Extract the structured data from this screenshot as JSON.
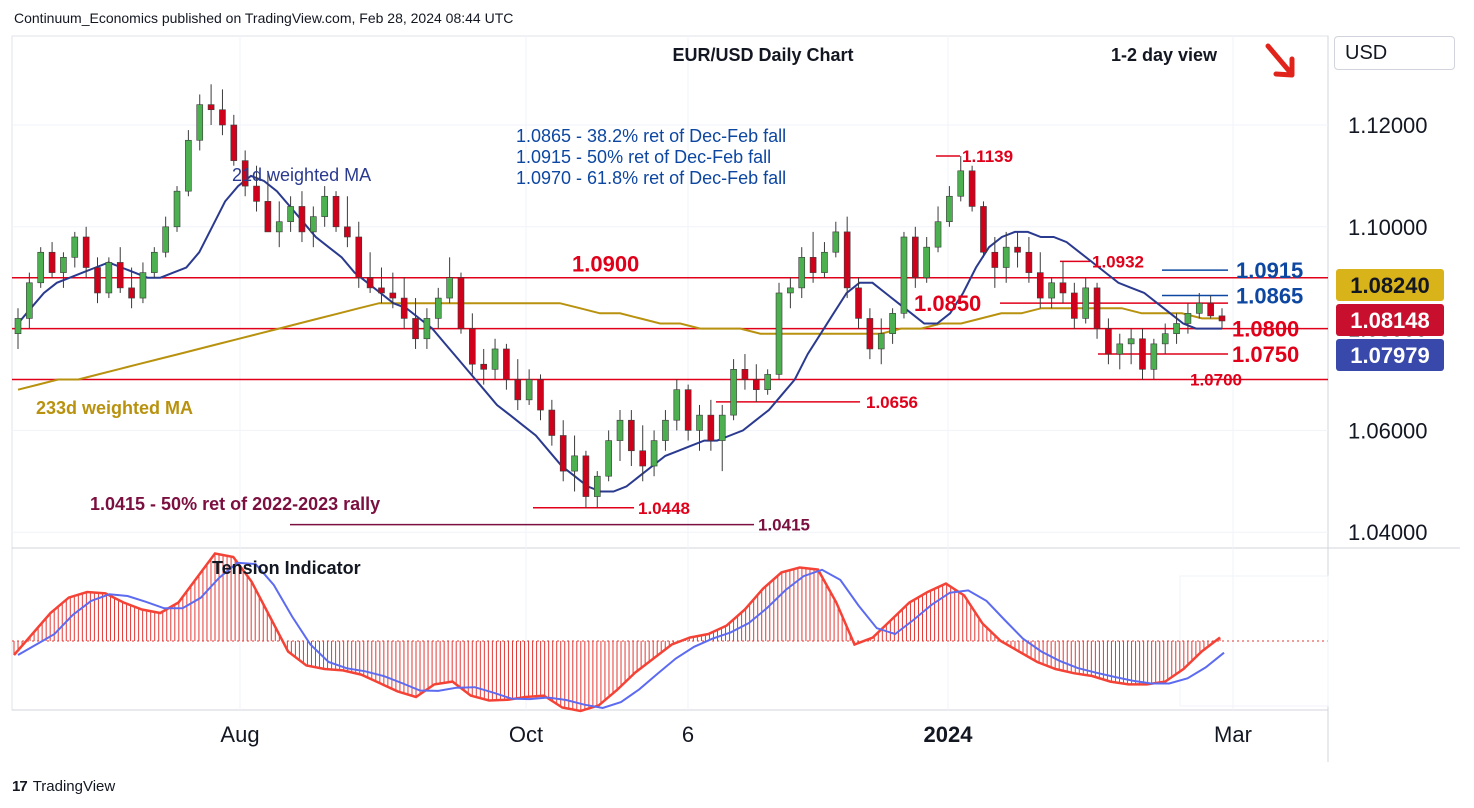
{
  "header": {
    "published": "Continuum_Economics published on TradingView.com, Feb 28, 2024 08:44 UTC",
    "currency": "USD",
    "brand": "TradingView"
  },
  "colors": {
    "up": "#4caf50",
    "down": "#d0021b",
    "wick": "#3b3b3b",
    "wma21": "#2a3a8f",
    "wma233": "#b8920f",
    "level": "#e0001a",
    "fib": "#0d47a1",
    "rally": "#7b1040",
    "tension_hist": "#e53935",
    "tension_fast": "#f44336",
    "tension_slow": "#5c6bf0"
  },
  "chart_data": [
    {
      "type": "candlestick",
      "title": "EUR/USD Daily Chart",
      "subtitle": "1-2 day view",
      "ylim": [
        1.035,
        1.138
      ],
      "y_ticks": [
        "1.12000",
        "1.10000",
        "1.08000",
        "1.06000",
        "1.04000"
      ],
      "x_ticks": [
        "Aug",
        "Oct",
        "6",
        "2024",
        "Mar"
      ],
      "annotations": [
        {
          "text": "1.0865 - 38.2% ret of Dec-Feb fall"
        },
        {
          "text": "1.0915 - 50% ret of Dec-Feb fall"
        },
        {
          "text": "1.0970 - 61.8% ret of Dec-Feb fall"
        },
        {
          "text": "21d weighted MA"
        },
        {
          "text": "233d weighted MA"
        },
        {
          "text": "1.0415 - 50% ret of 2022-2023 rally"
        }
      ],
      "levels": [
        {
          "value": 1.09,
          "label": "1.0900"
        },
        {
          "value": 1.085,
          "label": "1.0850"
        },
        {
          "value": 1.08,
          "label": "1.0800"
        },
        {
          "value": 1.075,
          "label": "1.0750"
        },
        {
          "value": 1.07,
          "label": "1.0700"
        },
        {
          "value": 1.0656,
          "label": "1.0656"
        },
        {
          "value": 1.0448,
          "label": "1.0448"
        },
        {
          "value": 1.0415,
          "label": "1.0415"
        },
        {
          "value": 1.1139,
          "label": "1.1139"
        },
        {
          "value": 1.0932,
          "label": "1.0932"
        },
        {
          "value": 1.0915,
          "label": "1.0915"
        },
        {
          "value": 1.0865,
          "label": "1.0865"
        }
      ],
      "price_tags": [
        {
          "value": 1.0824,
          "label": "1.08240"
        },
        {
          "value": 1.08148,
          "label": "1.08148"
        },
        {
          "value": 1.07979,
          "label": "1.07979"
        }
      ],
      "series": [
        {
          "name": "21d weighted MA",
          "values": [
            1.081,
            1.084,
            1.087,
            1.089,
            1.09,
            1.091,
            1.092,
            1.093,
            1.092,
            1.091,
            1.09,
            1.09,
            1.091,
            1.092,
            1.095,
            1.1,
            1.105,
            1.108,
            1.11,
            1.109,
            1.107,
            1.104,
            1.101,
            1.098,
            1.096,
            1.094,
            1.091,
            1.089,
            1.087,
            1.085,
            1.084,
            1.082,
            1.08,
            1.077,
            1.074,
            1.071,
            1.068,
            1.065,
            1.063,
            1.061,
            1.059,
            1.056,
            1.053,
            1.051,
            1.049,
            1.048,
            1.048,
            1.049,
            1.051,
            1.053,
            1.055,
            1.056,
            1.057,
            1.058,
            1.058,
            1.059,
            1.06,
            1.062,
            1.064,
            1.067,
            1.07,
            1.075,
            1.079,
            1.083,
            1.087,
            1.089,
            1.089,
            1.087,
            1.085,
            1.083,
            1.081,
            1.081,
            1.083,
            1.087,
            1.092,
            1.096,
            1.098,
            1.099,
            1.099,
            1.098,
            1.098,
            1.097,
            1.095,
            1.093,
            1.091,
            1.089,
            1.088,
            1.087,
            1.085,
            1.083,
            1.081,
            1.08,
            1.08,
            1.08
          ]
        },
        {
          "name": "233d weighted MA",
          "values": [
            1.068,
            1.069,
            1.07,
            1.07,
            1.071,
            1.072,
            1.073,
            1.074,
            1.075,
            1.076,
            1.077,
            1.078,
            1.079,
            1.08,
            1.081,
            1.082,
            1.083,
            1.084,
            1.085,
            1.085,
            1.085,
            1.085,
            1.085,
            1.085,
            1.085,
            1.085,
            1.085,
            1.085,
            1.084,
            1.083,
            1.083,
            1.082,
            1.081,
            1.081,
            1.08,
            1.08,
            1.08,
            1.079,
            1.079,
            1.079,
            1.079,
            1.079,
            1.079,
            1.079,
            1.08,
            1.08,
            1.081,
            1.081,
            1.082,
            1.083,
            1.083,
            1.084,
            1.084,
            1.084,
            1.084,
            1.084,
            1.083,
            1.083,
            1.083,
            1.082,
            1.082
          ]
        }
      ],
      "candles": [
        [
          1.079,
          1.084,
          1.076,
          1.082
        ],
        [
          1.082,
          1.091,
          1.08,
          1.089
        ],
        [
          1.089,
          1.096,
          1.088,
          1.095
        ],
        [
          1.095,
          1.097,
          1.09,
          1.091
        ],
        [
          1.091,
          1.095,
          1.088,
          1.094
        ],
        [
          1.094,
          1.099,
          1.092,
          1.098
        ],
        [
          1.098,
          1.1,
          1.09,
          1.092
        ],
        [
          1.092,
          1.094,
          1.085,
          1.087
        ],
        [
          1.087,
          1.094,
          1.086,
          1.093
        ],
        [
          1.093,
          1.096,
          1.087,
          1.088
        ],
        [
          1.088,
          1.092,
          1.084,
          1.086
        ],
        [
          1.086,
          1.093,
          1.085,
          1.091
        ],
        [
          1.091,
          1.096,
          1.09,
          1.095
        ],
        [
          1.095,
          1.102,
          1.094,
          1.1
        ],
        [
          1.1,
          1.108,
          1.099,
          1.107
        ],
        [
          1.107,
          1.119,
          1.106,
          1.117
        ],
        [
          1.117,
          1.126,
          1.115,
          1.124
        ],
        [
          1.124,
          1.128,
          1.12,
          1.123
        ],
        [
          1.123,
          1.127,
          1.118,
          1.12
        ],
        [
          1.12,
          1.122,
          1.112,
          1.113
        ],
        [
          1.113,
          1.115,
          1.106,
          1.108
        ],
        [
          1.108,
          1.112,
          1.103,
          1.105
        ],
        [
          1.105,
          1.111,
          1.099,
          1.099
        ],
        [
          1.099,
          1.105,
          1.096,
          1.101
        ],
        [
          1.101,
          1.106,
          1.099,
          1.104
        ],
        [
          1.104,
          1.107,
          1.097,
          1.099
        ],
        [
          1.099,
          1.104,
          1.096,
          1.102
        ],
        [
          1.102,
          1.108,
          1.1,
          1.106
        ],
        [
          1.106,
          1.107,
          1.099,
          1.1
        ],
        [
          1.1,
          1.106,
          1.096,
          1.098
        ],
        [
          1.098,
          1.101,
          1.088,
          1.09
        ],
        [
          1.09,
          1.095,
          1.087,
          1.088
        ],
        [
          1.088,
          1.092,
          1.085,
          1.087
        ],
        [
          1.087,
          1.091,
          1.084,
          1.086
        ],
        [
          1.086,
          1.09,
          1.08,
          1.082
        ],
        [
          1.082,
          1.086,
          1.076,
          1.078
        ],
        [
          1.078,
          1.084,
          1.076,
          1.082
        ],
        [
          1.082,
          1.088,
          1.08,
          1.086
        ],
        [
          1.086,
          1.094,
          1.085,
          1.09
        ],
        [
          1.09,
          1.091,
          1.079,
          1.08
        ],
        [
          1.08,
          1.083,
          1.071,
          1.073
        ],
        [
          1.073,
          1.076,
          1.069,
          1.072
        ],
        [
          1.072,
          1.078,
          1.07,
          1.076
        ],
        [
          1.076,
          1.077,
          1.068,
          1.07
        ],
        [
          1.07,
          1.074,
          1.064,
          1.066
        ],
        [
          1.066,
          1.072,
          1.065,
          1.07
        ],
        [
          1.07,
          1.071,
          1.062,
          1.064
        ],
        [
          1.064,
          1.066,
          1.057,
          1.059
        ],
        [
          1.059,
          1.062,
          1.05,
          1.052
        ],
        [
          1.052,
          1.059,
          1.048,
          1.055
        ],
        [
          1.055,
          1.056,
          1.0448,
          1.047
        ],
        [
          1.047,
          1.052,
          1.0448,
          1.051
        ],
        [
          1.051,
          1.06,
          1.05,
          1.058
        ],
        [
          1.058,
          1.064,
          1.054,
          1.062
        ],
        [
          1.062,
          1.064,
          1.053,
          1.056
        ],
        [
          1.056,
          1.061,
          1.05,
          1.053
        ],
        [
          1.053,
          1.06,
          1.051,
          1.058
        ],
        [
          1.058,
          1.064,
          1.056,
          1.062
        ],
        [
          1.062,
          1.07,
          1.06,
          1.068
        ],
        [
          1.068,
          1.069,
          1.058,
          1.06
        ],
        [
          1.06,
          1.065,
          1.056,
          1.063
        ],
        [
          1.063,
          1.066,
          1.056,
          1.058
        ],
        [
          1.058,
          1.065,
          1.052,
          1.063
        ],
        [
          1.063,
          1.074,
          1.062,
          1.072
        ],
        [
          1.072,
          1.075,
          1.068,
          1.07
        ],
        [
          1.07,
          1.073,
          1.0656,
          1.068
        ],
        [
          1.068,
          1.072,
          1.067,
          1.071
        ],
        [
          1.071,
          1.089,
          1.07,
          1.087
        ],
        [
          1.087,
          1.09,
          1.084,
          1.088
        ],
        [
          1.088,
          1.096,
          1.086,
          1.094
        ],
        [
          1.094,
          1.099,
          1.089,
          1.091
        ],
        [
          1.091,
          1.097,
          1.09,
          1.095
        ],
        [
          1.095,
          1.101,
          1.094,
          1.099
        ],
        [
          1.099,
          1.102,
          1.086,
          1.088
        ],
        [
          1.088,
          1.09,
          1.08,
          1.082
        ],
        [
          1.082,
          1.084,
          1.074,
          1.076
        ],
        [
          1.076,
          1.082,
          1.073,
          1.079
        ],
        [
          1.079,
          1.084,
          1.077,
          1.083
        ],
        [
          1.083,
          1.099,
          1.082,
          1.098
        ],
        [
          1.098,
          1.1,
          1.088,
          1.09
        ],
        [
          1.09,
          1.098,
          1.089,
          1.096
        ],
        [
          1.096,
          1.104,
          1.095,
          1.101
        ],
        [
          1.101,
          1.108,
          1.1,
          1.106
        ],
        [
          1.106,
          1.1139,
          1.105,
          1.111
        ],
        [
          1.111,
          1.112,
          1.103,
          1.104
        ],
        [
          1.104,
          1.105,
          1.094,
          1.095
        ],
        [
          1.095,
          1.098,
          1.088,
          1.092
        ],
        [
          1.092,
          1.099,
          1.089,
          1.096
        ],
        [
          1.096,
          1.099,
          1.092,
          1.095
        ],
        [
          1.095,
          1.098,
          1.089,
          1.091
        ],
        [
          1.091,
          1.095,
          1.084,
          1.086
        ],
        [
          1.086,
          1.09,
          1.084,
          1.089
        ],
        [
          1.089,
          1.0932,
          1.085,
          1.087
        ],
        [
          1.087,
          1.089,
          1.08,
          1.082
        ],
        [
          1.082,
          1.09,
          1.081,
          1.088
        ],
        [
          1.088,
          1.089,
          1.078,
          1.08
        ],
        [
          1.08,
          1.082,
          1.073,
          1.075
        ],
        [
          1.075,
          1.079,
          1.072,
          1.077
        ],
        [
          1.077,
          1.08,
          1.073,
          1.078
        ],
        [
          1.078,
          1.08,
          1.07,
          1.072
        ],
        [
          1.072,
          1.078,
          1.07,
          1.077
        ],
        [
          1.077,
          1.081,
          1.075,
          1.079
        ],
        [
          1.079,
          1.083,
          1.077,
          1.081
        ],
        [
          1.081,
          1.085,
          1.079,
          1.083
        ],
        [
          1.083,
          1.087,
          1.082,
          1.085
        ],
        [
          1.085,
          1.0865,
          1.082,
          1.0825
        ],
        [
          1.0825,
          1.084,
          1.08,
          1.0815
        ]
      ]
    },
    {
      "type": "area",
      "title": "Tension Indicator",
      "series": [
        {
          "values": [
            -0.2,
            0.1,
            0.4,
            0.62,
            0.7,
            0.68,
            0.55,
            0.45,
            0.4,
            0.55,
            0.9,
            1.25,
            1.2,
            0.85,
            0.35,
            -0.15,
            -0.35,
            -0.4,
            -0.42,
            -0.48,
            -0.6,
            -0.72,
            -0.8,
            -0.62,
            -0.58,
            -0.78,
            -0.85,
            -0.84,
            -0.8,
            -0.78,
            -0.95,
            -1.0,
            -0.92,
            -0.7,
            -0.45,
            -0.25,
            -0.05,
            0.05,
            0.1,
            0.22,
            0.45,
            0.75,
            0.98,
            1.05,
            1.02,
            0.55,
            -0.05,
            0.05,
            0.3,
            0.55,
            0.7,
            0.82,
            0.65,
            0.25,
            0.0,
            -0.15,
            -0.3,
            -0.4,
            -0.46,
            -0.5,
            -0.58,
            -0.62,
            -0.62,
            -0.58,
            -0.4,
            -0.15,
            0.05
          ]
        }
      ]
    }
  ]
}
